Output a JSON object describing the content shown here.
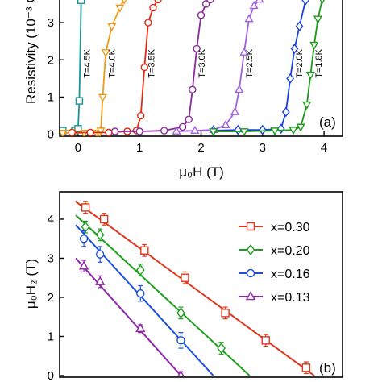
{
  "chart_data": [
    {
      "panel_label": "(a)",
      "type": "line",
      "xlabel": "μ₀H (T)",
      "ylabel": "Resistivity (10⁻³ Ω",
      "xlim": [
        -0.3,
        4.3
      ],
      "ylim": [
        -0.05,
        3.65
      ],
      "xticks": [
        0,
        1,
        2,
        3,
        4
      ],
      "yticks": [
        0,
        1,
        2,
        3
      ],
      "grid": false,
      "series": [
        {
          "name": "T=4.5K",
          "color": "#1a9494",
          "marker": "square",
          "x": [
            -0.25,
            -0.05,
            0.0,
            0.02,
            0.05
          ],
          "y": [
            0.1,
            0.1,
            0.15,
            0.9,
            3.6
          ]
        },
        {
          "name": "T=4.0K",
          "color": "#f29a16",
          "marker": "triangle-down",
          "x": [
            -0.25,
            -0.1,
            0.1,
            0.3,
            0.35,
            0.37,
            0.4,
            0.45,
            0.55,
            0.68,
            0.75
          ],
          "y": [
            0.04,
            0.04,
            0.04,
            0.04,
            0.04,
            0.1,
            1.0,
            2.2,
            2.9,
            3.4,
            3.62
          ]
        },
        {
          "name": "T=3.5K",
          "color": "#e02a10",
          "marker": "circle",
          "x": [
            -0.1,
            0.2,
            0.5,
            0.8,
            0.95,
            1.02,
            1.08,
            1.14,
            1.22,
            1.3
          ],
          "y": [
            0.05,
            0.05,
            0.05,
            0.08,
            0.1,
            0.5,
            1.8,
            3.0,
            3.4,
            3.62
          ]
        },
        {
          "name": "T=3.0K",
          "color": "#8b2a9a",
          "marker": "circle",
          "x": [
            0.6,
            1.0,
            1.4,
            1.7,
            1.8,
            1.86,
            1.93,
            2.0,
            2.08,
            2.15
          ],
          "y": [
            0.08,
            0.08,
            0.1,
            0.2,
            0.4,
            1.2,
            2.3,
            3.2,
            3.5,
            3.62
          ]
        },
        {
          "name": "T=2.5K",
          "color": "#a060e0",
          "marker": "triangle-up",
          "x": [
            1.6,
            1.9,
            2.2,
            2.4,
            2.55,
            2.62,
            2.7,
            2.78,
            2.86,
            2.95
          ],
          "y": [
            0.08,
            0.1,
            0.12,
            0.25,
            0.6,
            1.2,
            2.2,
            3.1,
            3.45,
            3.62
          ]
        },
        {
          "name": "T=2.0K",
          "color": "#1a40d8",
          "marker": "diamond",
          "x": [
            2.2,
            2.6,
            3.0,
            3.3,
            3.38,
            3.45,
            3.52,
            3.6,
            3.7
          ],
          "y": [
            0.1,
            0.12,
            0.12,
            0.15,
            0.6,
            1.5,
            2.3,
            2.9,
            3.6
          ]
        },
        {
          "name": "T=1.8K",
          "color": "#1a9a1a",
          "marker": "triangle-down",
          "x": [
            2.2,
            2.7,
            3.2,
            3.5,
            3.62,
            3.72,
            3.78,
            3.84,
            3.9,
            3.97
          ],
          "y": [
            0.08,
            0.08,
            0.1,
            0.12,
            0.2,
            0.8,
            1.6,
            2.4,
            3.1,
            3.62
          ]
        }
      ]
    },
    {
      "panel_label": "(b)",
      "type": "scatter",
      "xlabel": "",
      "ylabel": "μ₀H₂ (T)",
      "ylim": [
        0,
        4.7
      ],
      "yticks": [
        0,
        1,
        2,
        3,
        4
      ],
      "legend_position": "top-right",
      "grid": false,
      "series": [
        {
          "name": "x=0.30",
          "color": "#e0361c",
          "marker": "square",
          "x": [
            1.82,
            2.05,
            2.55,
            3.05,
            3.55,
            4.05,
            4.55
          ],
          "y": [
            4.3,
            4.0,
            3.2,
            2.5,
            1.6,
            0.9,
            0.2
          ],
          "err": [
            0.15,
            0.15,
            0.15,
            0.15,
            0.15,
            0.15,
            0.15
          ],
          "fit": [
            [
              1.7,
              4.45
            ],
            [
              4.65,
              0.0
            ]
          ]
        },
        {
          "name": "x=0.20",
          "color": "#1ca01c",
          "marker": "diamond",
          "x": [
            1.82,
            2.0,
            2.5,
            3.0,
            3.5
          ],
          "y": [
            3.8,
            3.6,
            2.7,
            1.6,
            0.7
          ],
          "err": [
            0.15,
            0.15,
            0.15,
            0.15,
            0.15
          ],
          "fit": [
            [
              1.7,
              4.1
            ],
            [
              3.85,
              0.0
            ]
          ]
        },
        {
          "name": "x=0.16",
          "color": "#1a4fe0",
          "marker": "circle",
          "x": [
            1.8,
            2.0,
            2.5,
            3.0
          ],
          "y": [
            3.5,
            3.1,
            2.1,
            0.9
          ],
          "err": [
            0.2,
            0.2,
            0.2,
            0.2
          ],
          "fit": [
            [
              1.7,
              3.85
            ],
            [
              3.4,
              0.0
            ]
          ]
        },
        {
          "name": "x=0.13",
          "color": "#8e24a8",
          "marker": "triangle-up",
          "x": [
            1.8,
            2.0,
            2.5,
            3.0
          ],
          "y": [
            2.8,
            2.4,
            1.2,
            0.0
          ],
          "err": [
            0.15,
            0.15,
            0.1,
            0.1
          ],
          "fit": [
            [
              1.7,
              3.0
            ],
            [
              3.0,
              0.0
            ]
          ]
        }
      ]
    }
  ]
}
